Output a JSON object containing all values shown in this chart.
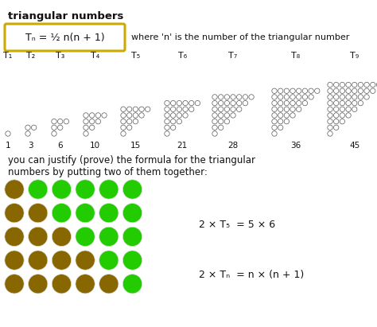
{
  "title": "triangular numbers",
  "formula": "Tₙ = ½ n(n + 1)",
  "formula_note": "where 'n' is the number of the triangular number",
  "t_labels": [
    "T₁",
    "T₂",
    "T₃",
    "T₄",
    "T₅",
    "T₆",
    "T₇",
    "T₈",
    "T₉"
  ],
  "t_values": [
    "1",
    "3",
    "6",
    "10",
    "15",
    "21",
    "28",
    "36",
    "45"
  ],
  "justify_text1": "you can justify (prove) the formula for the triangular",
  "justify_text2": "numbers by putting two of them together:",
  "formula2a": "2 × T₅  = 5 × 6",
  "formula2b": "2 × Tₙ  = n × (n + 1)",
  "dot_color_outline": "#555555",
  "green_color": "#22cc00",
  "gold_color": "#886600",
  "box_edge_color": "#ccaa00",
  "box_face_color": "#ffffff",
  "bg_color": "#ffffff",
  "text_color": "#111111"
}
